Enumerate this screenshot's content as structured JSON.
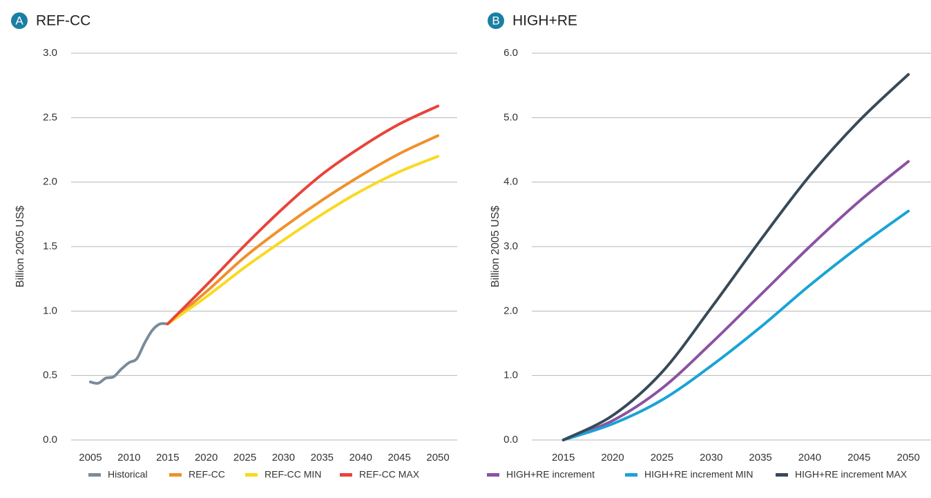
{
  "chart_data": [
    {
      "type": "line",
      "panel_label": "A",
      "title": "REF-CC",
      "y_label": "Billion 2005 US$",
      "x": [
        2005,
        2006,
        2007,
        2008,
        2009,
        2010,
        2011,
        2012,
        2013,
        2014,
        2015,
        2020,
        2025,
        2030,
        2035,
        2040,
        2045,
        2050
      ],
      "xlim": [
        2002.5,
        2052.5
      ],
      "xticks": [
        2005,
        2010,
        2015,
        2020,
        2025,
        2030,
        2035,
        2040,
        2045,
        2050
      ],
      "ylim": [
        0,
        3
      ],
      "yticks": [
        {
          "value": 0,
          "label": "0.0"
        },
        0.5,
        {
          "value": 1,
          "label": "1.0"
        },
        1.5,
        {
          "value": 2,
          "label": "2.0"
        },
        2.5,
        {
          "value": 3,
          "label": "3.0"
        }
      ],
      "grid": true,
      "series": [
        {
          "name": "Historical",
          "color": "#7b8b99",
          "values": [
            0.45,
            0.44,
            0.48,
            0.49,
            0.55,
            0.6,
            0.63,
            0.75,
            0.85,
            0.9,
            0.9,
            null,
            null,
            null,
            null,
            null,
            null,
            null
          ]
        },
        {
          "name": "REF-CC",
          "color": "#f0902a",
          "values": [
            null,
            null,
            null,
            null,
            null,
            null,
            null,
            null,
            null,
            null,
            0.9,
            1.15,
            1.42,
            1.65,
            1.86,
            2.05,
            2.22,
            2.36
          ]
        },
        {
          "name": "REF-CC MIN",
          "color": "#f9d922",
          "values": [
            null,
            null,
            null,
            null,
            null,
            null,
            null,
            null,
            null,
            null,
            0.9,
            1.11,
            1.34,
            1.55,
            1.75,
            1.93,
            2.08,
            2.2
          ]
        },
        {
          "name": "REF-CC MAX",
          "color": "#e8443a",
          "values": [
            null,
            null,
            null,
            null,
            null,
            null,
            null,
            null,
            null,
            null,
            0.9,
            1.2,
            1.51,
            1.8,
            2.06,
            2.27,
            2.45,
            2.59
          ]
        }
      ]
    },
    {
      "type": "line",
      "panel_label": "B",
      "title": "HIGH+RE",
      "y_label": "Billion 2005 US$",
      "x": [
        2015,
        2020,
        2025,
        2030,
        2035,
        2040,
        2045,
        2050
      ],
      "xlim": [
        2011.8,
        2052.3
      ],
      "xticks": [
        2015,
        2020,
        2025,
        2030,
        2035,
        2040,
        2045,
        2050
      ],
      "ylim": [
        0,
        6
      ],
      "yticks": [
        {
          "value": 0,
          "label": "0.0"
        },
        {
          "value": 1,
          "label": "1.0"
        },
        {
          "value": 2,
          "label": "2.0"
        },
        {
          "value": 3,
          "label": "3.0"
        },
        {
          "value": 4,
          "label": "4.0"
        },
        {
          "value": 5,
          "label": "5.0"
        },
        {
          "value": 6,
          "label": "6.0"
        }
      ],
      "grid": true,
      "series": [
        {
          "name": "HIGH+RE increment",
          "color": "#8b52a1",
          "values": [
            0,
            0.3,
            0.8,
            1.5,
            2.25,
            3.0,
            3.7,
            4.32
          ]
        },
        {
          "name": "HIGH+RE increment MIN",
          "color": "#1aa3d6",
          "values": [
            0,
            0.25,
            0.62,
            1.15,
            1.75,
            2.4,
            3.0,
            3.55
          ]
        },
        {
          "name": "HIGH+RE increment MAX",
          "color": "#374a5a",
          "values": [
            0,
            0.38,
            1.05,
            2.05,
            3.1,
            4.1,
            4.95,
            5.67
          ]
        }
      ]
    }
  ]
}
